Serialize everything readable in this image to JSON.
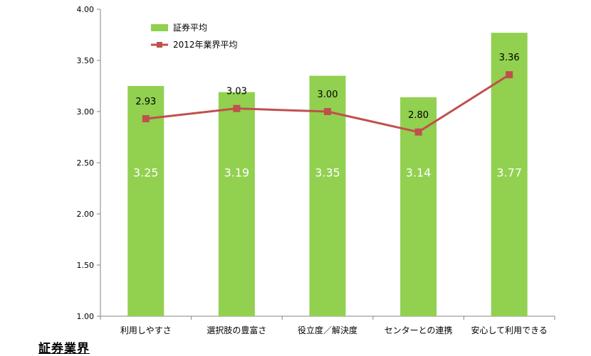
{
  "chart_data": {
    "type": "bar",
    "categories": [
      "利用しやすさ",
      "選択肢の豊富さ",
      "役立度／解決度",
      "センターとの連携",
      "安心して利用できる"
    ],
    "series": [
      {
        "name": "証券平均",
        "type": "bar",
        "color": "#92d050",
        "values": [
          3.25,
          3.19,
          3.35,
          3.14,
          3.77
        ]
      },
      {
        "name": "2012年業界平均",
        "type": "line",
        "color": "#c0504d",
        "values": [
          2.93,
          3.03,
          3.0,
          2.8,
          3.36
        ]
      }
    ],
    "yticks": [
      "1.00",
      "1.50",
      "2.00",
      "2.50",
      "3.00",
      "3.50",
      "4.00"
    ],
    "ylim": [
      1.0,
      4.0
    ],
    "legend_position": "top-left",
    "grid": false
  },
  "footer": {
    "title": "証券業界"
  }
}
